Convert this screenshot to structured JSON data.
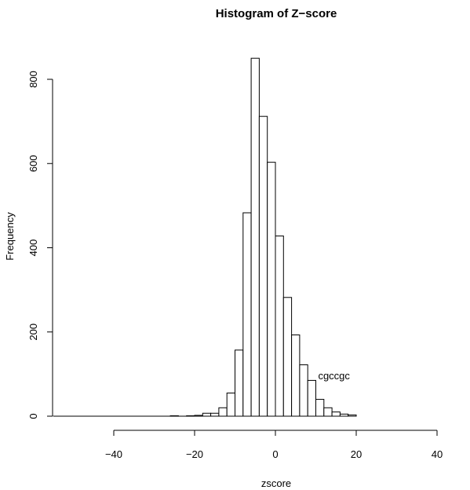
{
  "chart_data": {
    "type": "bar",
    "title": "Histogram of Z−score",
    "xlabel": "zscore",
    "ylabel": "Frequency",
    "xlim": [
      -55,
      20
    ],
    "ylim": [
      0,
      850
    ],
    "x_axis_range": [
      -40,
      40
    ],
    "y_axis_range": [
      0,
      800
    ],
    "x_ticks": [
      -40,
      -20,
      0,
      20,
      40
    ],
    "x_tick_labels": [
      "−40",
      "−20",
      "0",
      "20",
      "40"
    ],
    "y_ticks": [
      0,
      200,
      400,
      600,
      800
    ],
    "y_tick_labels": [
      "0",
      "200",
      "400",
      "600",
      "800"
    ],
    "bin_width": 2,
    "bins": [
      {
        "x0": -26,
        "x1": -24,
        "count": 1
      },
      {
        "x0": -24,
        "x1": -22,
        "count": 0
      },
      {
        "x0": -22,
        "x1": -20,
        "count": 1
      },
      {
        "x0": -20,
        "x1": -18,
        "count": 2
      },
      {
        "x0": -18,
        "x1": -16,
        "count": 7
      },
      {
        "x0": -16,
        "x1": -14,
        "count": 7
      },
      {
        "x0": -14,
        "x1": -12,
        "count": 20
      },
      {
        "x0": -12,
        "x1": -10,
        "count": 55
      },
      {
        "x0": -10,
        "x1": -8,
        "count": 157
      },
      {
        "x0": -8,
        "x1": -6,
        "count": 483
      },
      {
        "x0": -6,
        "x1": -4,
        "count": 850
      },
      {
        "x0": -4,
        "x1": -2,
        "count": 712
      },
      {
        "x0": -2,
        "x1": 0,
        "count": 603
      },
      {
        "x0": 0,
        "x1": 2,
        "count": 428
      },
      {
        "x0": 2,
        "x1": 4,
        "count": 282
      },
      {
        "x0": 4,
        "x1": 6,
        "count": 193
      },
      {
        "x0": 6,
        "x1": 8,
        "count": 122
      },
      {
        "x0": 8,
        "x1": 10,
        "count": 85
      },
      {
        "x0": 10,
        "x1": 12,
        "count": 40
      },
      {
        "x0": 12,
        "x1": 14,
        "count": 20
      },
      {
        "x0": 14,
        "x1": 16,
        "count": 10
      },
      {
        "x0": 16,
        "x1": 18,
        "count": 5
      },
      {
        "x0": 18,
        "x1": 20,
        "count": 3
      }
    ],
    "baseline_from": -55,
    "annotations": [
      {
        "text": "cgccgc",
        "x": 14.5,
        "y": 88
      }
    ],
    "grid": false,
    "legend": "none",
    "bar_fill": "#ffffff",
    "bar_stroke": "#000000"
  }
}
